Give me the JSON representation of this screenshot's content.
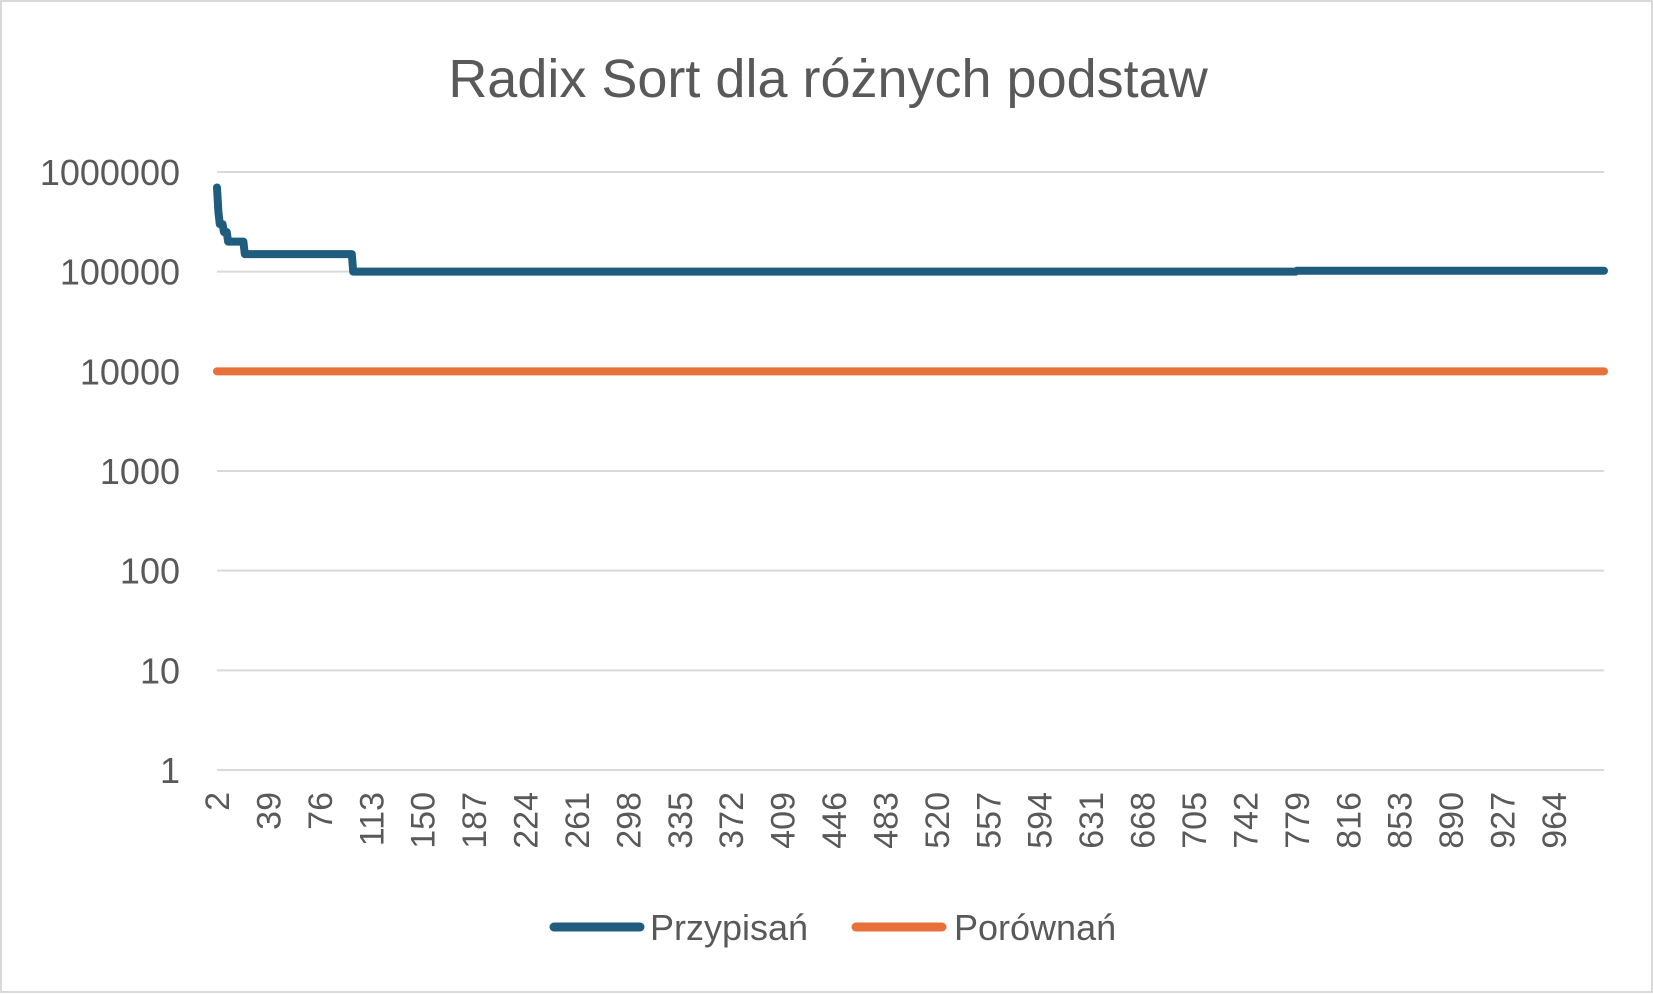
{
  "chart_data": {
    "type": "line",
    "title": "Radix Sort dla różnych podstaw",
    "xlabel": "",
    "ylabel": "",
    "y_scale": "log",
    "ylim": [
      1,
      1000000
    ],
    "y_ticks": [
      1,
      10,
      100,
      1000,
      10000,
      100000,
      1000000
    ],
    "y_tick_labels": [
      "1",
      "10",
      "100",
      "1000",
      "10000",
      "100000",
      "1000000"
    ],
    "xlim": [
      2,
      1000
    ],
    "x_ticks": [
      2,
      39,
      76,
      113,
      150,
      187,
      224,
      261,
      298,
      335,
      372,
      409,
      446,
      483,
      520,
      557,
      594,
      631,
      668,
      705,
      742,
      779,
      816,
      853,
      890,
      927,
      964
    ],
    "grid": true,
    "legend_position": "bottom",
    "series": [
      {
        "name": "Przypisań",
        "color": "#1f5c7e",
        "points": [
          [
            2,
            700000
          ],
          [
            3,
            400000
          ],
          [
            4,
            300000
          ],
          [
            6,
            300000
          ],
          [
            7,
            250000
          ],
          [
            9,
            250000
          ],
          [
            10,
            200000
          ],
          [
            21,
            200000
          ],
          [
            22,
            150000
          ],
          [
            99,
            150000
          ],
          [
            100,
            100000
          ],
          [
            778,
            100000
          ],
          [
            779,
            102000
          ],
          [
            1000,
            102000
          ]
        ]
      },
      {
        "name": "Porównań",
        "color": "#e8703a",
        "points": [
          [
            2,
            10000
          ],
          [
            1000,
            10000
          ]
        ]
      }
    ]
  }
}
